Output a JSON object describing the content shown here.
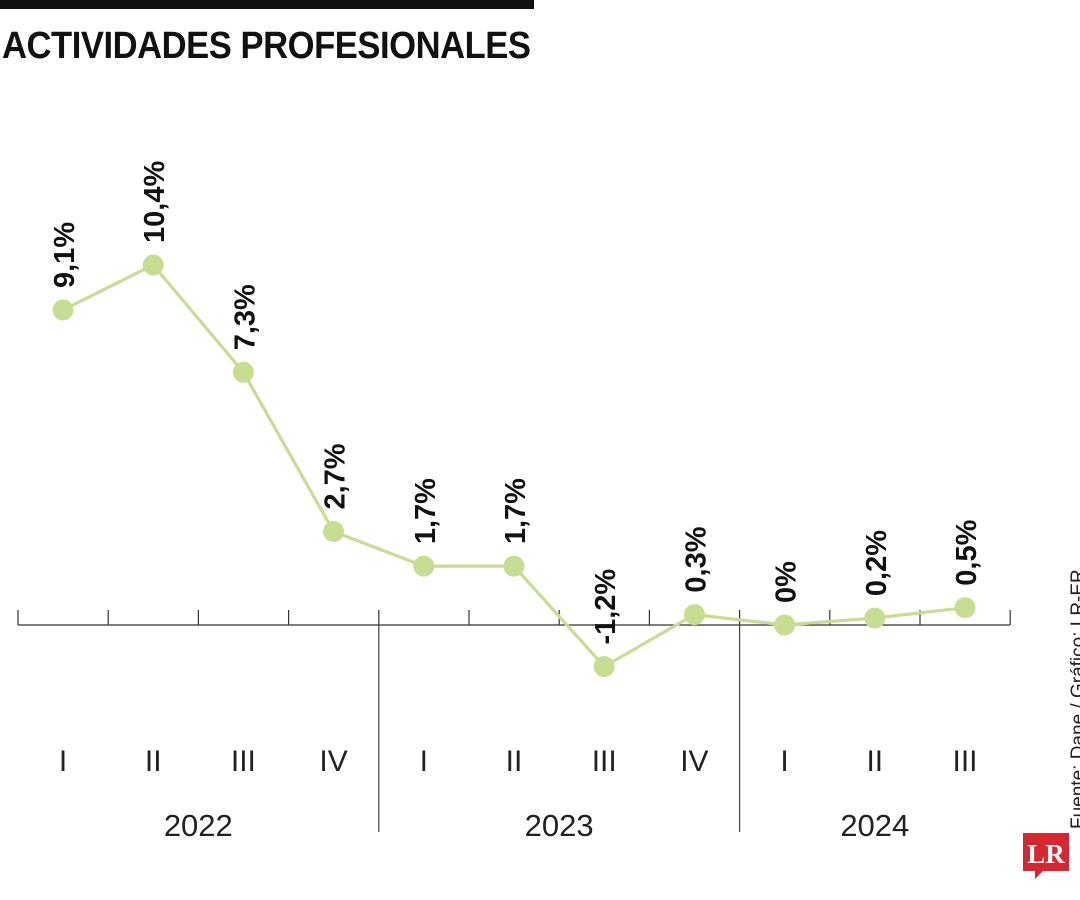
{
  "title": "ACTIVIDADES PROFESIONALES",
  "source": "Fuente: Dane / Gráfico: LR-ER",
  "logo": "LR",
  "colors": {
    "line": "#c7dd8f",
    "marker": "#c7dd8f",
    "text": "#111111",
    "logo": "#d7262e"
  },
  "chart_data": {
    "type": "line",
    "title": "ACTIVIDADES PROFESIONALES",
    "categories": [
      "I",
      "II",
      "III",
      "IV",
      "I",
      "II",
      "III",
      "IV",
      "I",
      "II",
      "III"
    ],
    "groups": [
      {
        "label": "2022",
        "count": 4
      },
      {
        "label": "2023",
        "count": 4
      },
      {
        "label": "2024",
        "count": 3
      }
    ],
    "values": [
      9.1,
      10.4,
      7.3,
      2.7,
      1.7,
      1.7,
      -1.2,
      0.3,
      0,
      0.2,
      0.5
    ],
    "labels": [
      "9,1%",
      "10,4%",
      "7,3%",
      "2,7%",
      "1,7%",
      "1,7%",
      "-1,2%",
      "0,3%",
      "0%",
      "0,2%",
      "0,5%"
    ],
    "ylim": [
      -1.2,
      10.4
    ],
    "grid": false,
    "legend": "none"
  }
}
